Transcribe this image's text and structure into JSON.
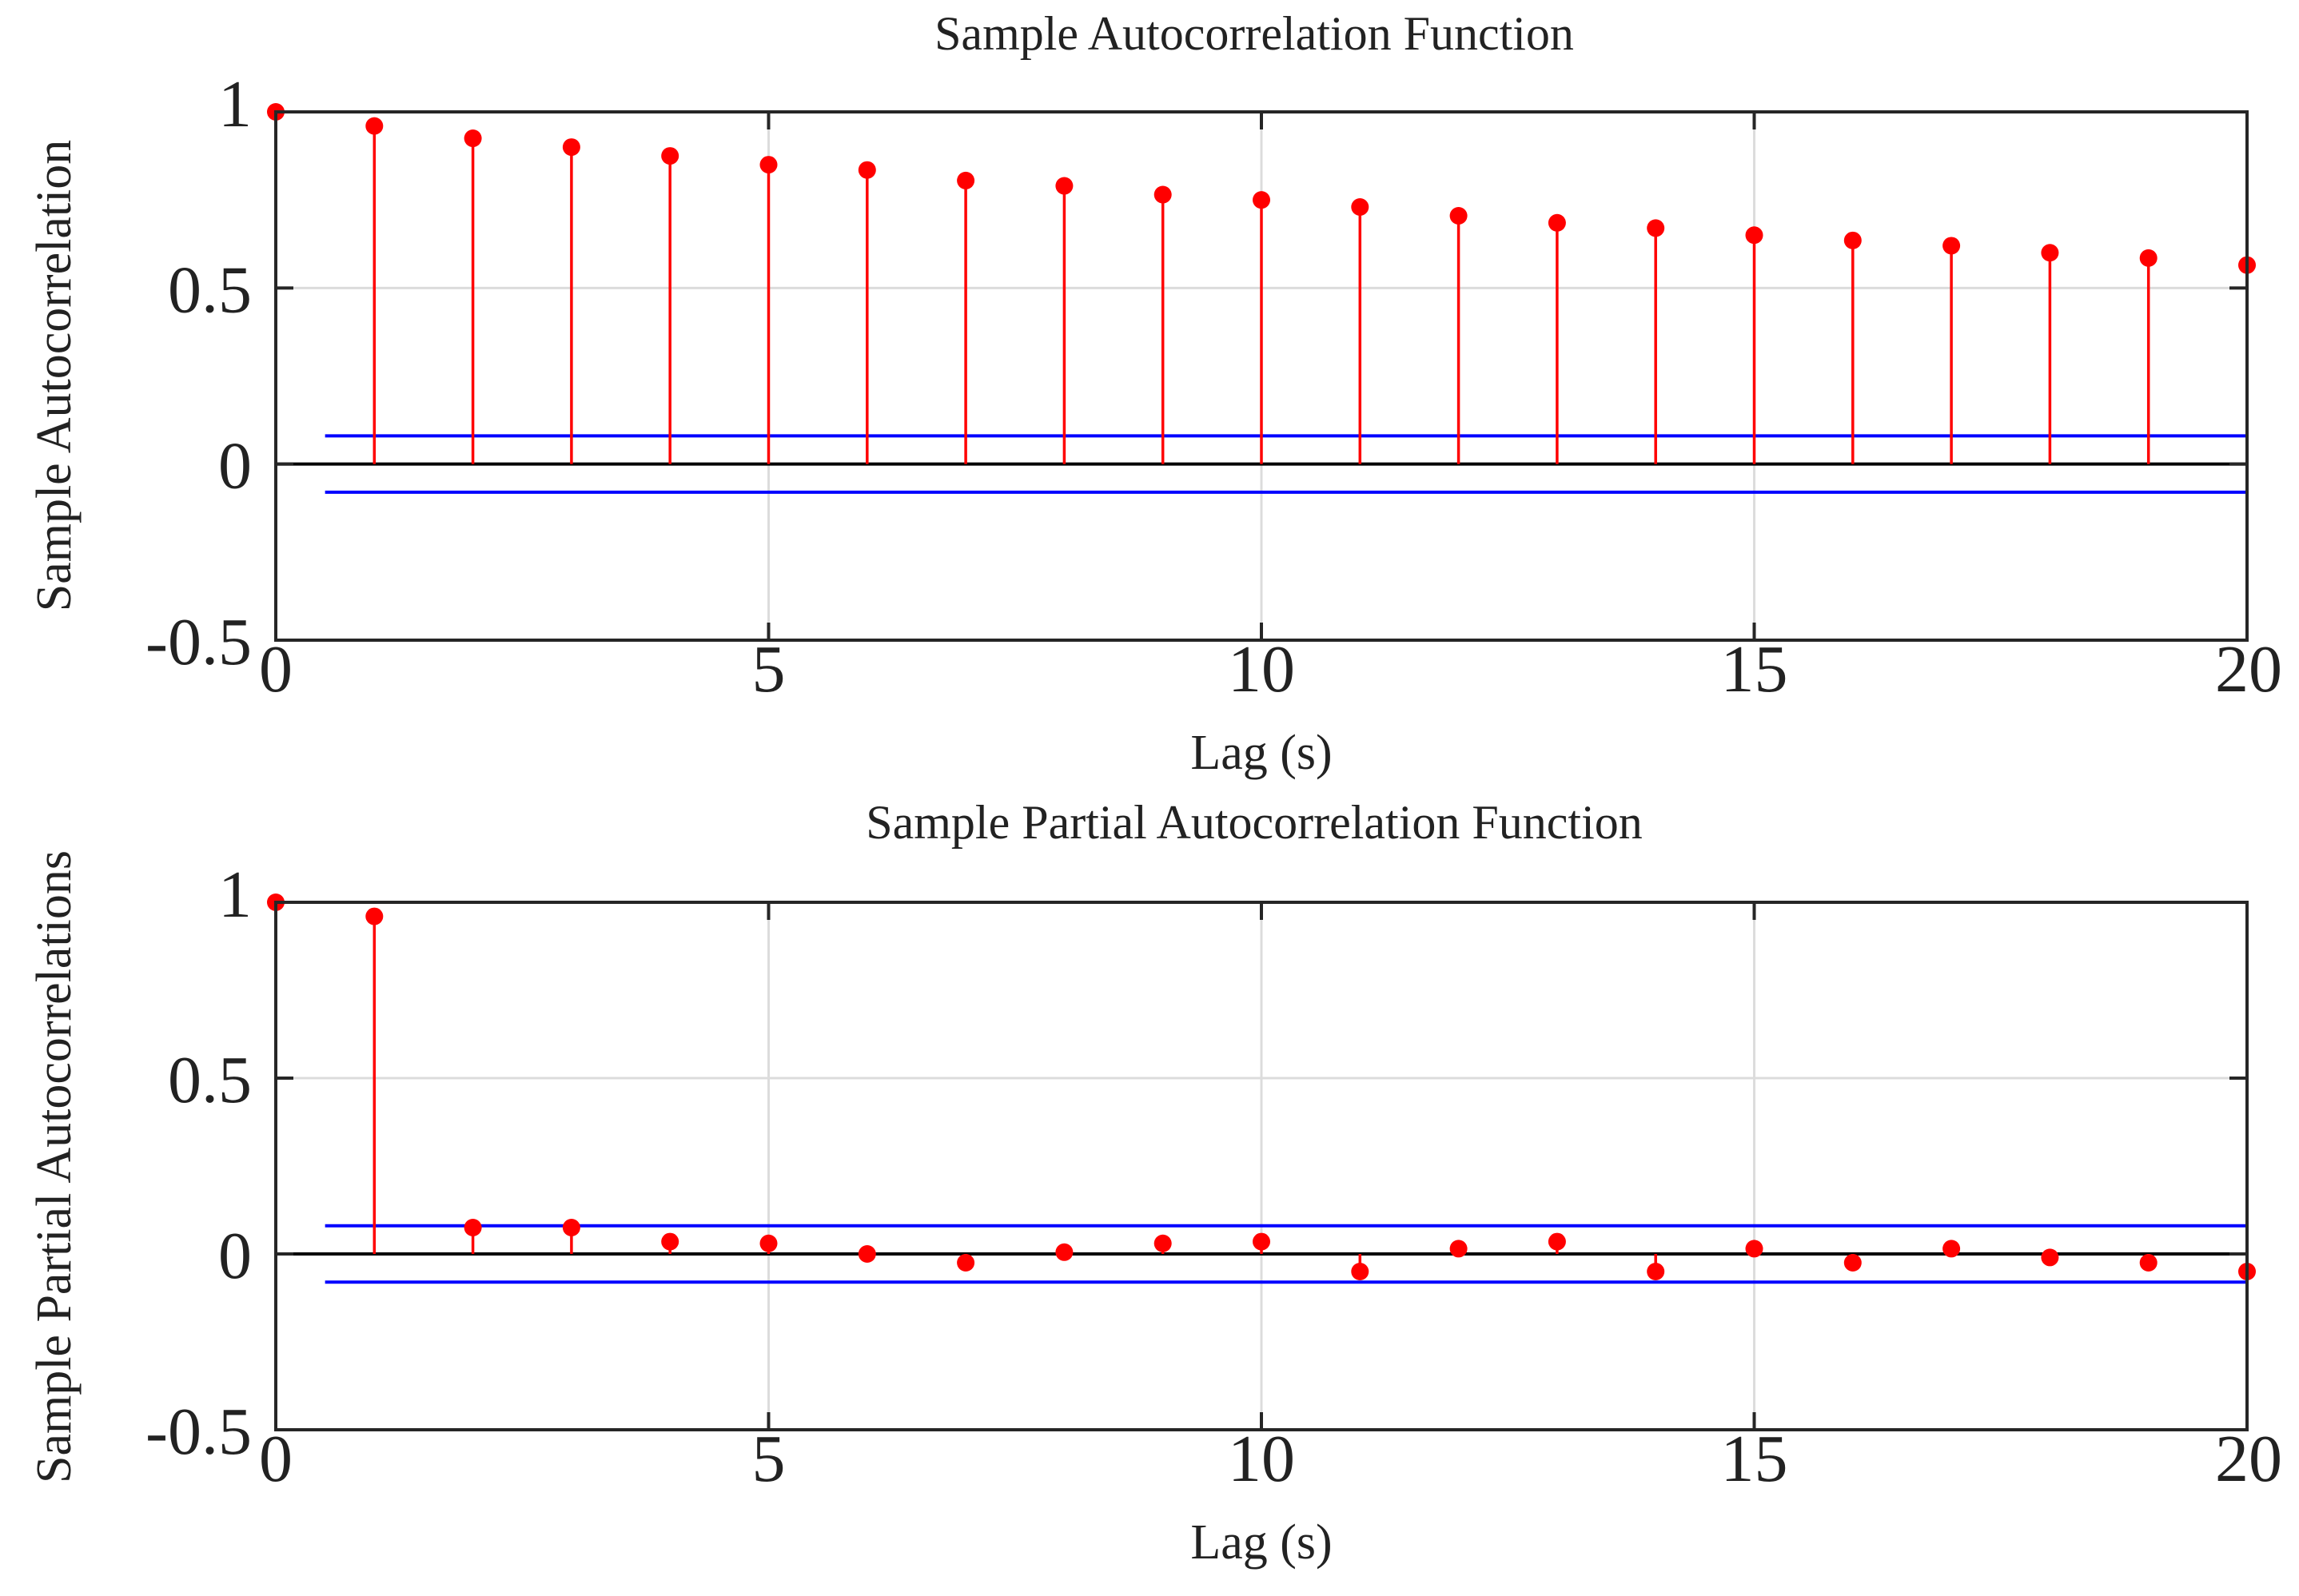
{
  "chart_data": [
    {
      "type": "stem",
      "title": "Sample Autocorrelation Function",
      "xlabel": "Lag (s)",
      "ylabel": "Sample Autocorrelation",
      "xlim": [
        0,
        20
      ],
      "ylim": [
        -0.5,
        1
      ],
      "x_ticks": [
        0,
        5,
        10,
        15,
        20
      ],
      "x_tick_labels": [
        "0",
        "5",
        "10",
        "15",
        "20"
      ],
      "y_ticks": [
        -0.5,
        0,
        0.5,
        1
      ],
      "y_tick_labels": [
        "-0.5",
        "0",
        "0.5",
        "1"
      ],
      "grid": true,
      "lags": [
        0,
        1,
        2,
        3,
        4,
        5,
        6,
        7,
        8,
        9,
        10,
        11,
        12,
        13,
        14,
        15,
        16,
        17,
        18,
        19,
        20
      ],
      "values": [
        1.0,
        0.96,
        0.925,
        0.9,
        0.875,
        0.85,
        0.835,
        0.805,
        0.79,
        0.765,
        0.75,
        0.73,
        0.705,
        0.685,
        0.67,
        0.65,
        0.635,
        0.62,
        0.6,
        0.585,
        0.565
      ],
      "confidence_bounds": {
        "upper": 0.08,
        "lower": -0.08
      },
      "series_color": "#ff0000",
      "bound_color": "#0000ff"
    },
    {
      "type": "stem",
      "title": "Sample Partial Autocorrelation Function",
      "xlabel": "Lag (s)",
      "ylabel": "Sample Partial Autocorrelations",
      "xlim": [
        0,
        20
      ],
      "ylim": [
        -0.5,
        1
      ],
      "x_ticks": [
        0,
        5,
        10,
        15,
        20
      ],
      "x_tick_labels": [
        "0",
        "5",
        "10",
        "15",
        "20"
      ],
      "y_ticks": [
        -0.5,
        0,
        0.5,
        1
      ],
      "y_tick_labels": [
        "-0.5",
        "0",
        "0.5",
        "1"
      ],
      "grid": true,
      "lags": [
        0,
        1,
        2,
        3,
        4,
        5,
        6,
        7,
        8,
        9,
        10,
        11,
        12,
        13,
        14,
        15,
        16,
        17,
        18,
        19,
        20
      ],
      "values": [
        1.0,
        0.96,
        0.075,
        0.075,
        0.035,
        0.03,
        0.0,
        -0.025,
        0.005,
        0.03,
        0.035,
        -0.05,
        0.015,
        0.035,
        -0.05,
        0.015,
        -0.025,
        0.015,
        -0.01,
        -0.025,
        -0.05
      ],
      "confidence_bounds": {
        "upper": 0.08,
        "lower": -0.08
      },
      "series_color": "#ff0000",
      "bound_color": "#0000ff"
    }
  ]
}
